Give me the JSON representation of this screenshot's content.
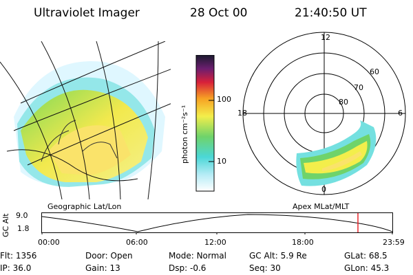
{
  "header": {
    "title": "Ultraviolet Imager",
    "date": "28 Oct 00",
    "time": "21:40:50 UT"
  },
  "colorbar": {
    "unit_label": "photon cm⁻²s⁻¹",
    "ticks": [
      "100",
      "10"
    ]
  },
  "panels": {
    "left_caption": "Geographic Lat/Lon",
    "right_caption": "Apex MLat/MLT"
  },
  "polar_plot": {
    "mlt_labels": {
      "top": "12",
      "left": "18",
      "right": "6",
      "bottom": "0"
    },
    "lat_labels": [
      "60",
      "70",
      "80"
    ]
  },
  "altitude_plot": {
    "ylabel": "GC Alt",
    "y_ticks": [
      "9.0",
      "1.8"
    ],
    "x_ticks": [
      "00:00",
      "06:00",
      "12:00",
      "18:00",
      "23:59"
    ],
    "marker_color": "#e8262b"
  },
  "info_rows": [
    [
      {
        "label": "Flt:",
        "value": "1356"
      },
      {
        "label": "Door:",
        "value": "Open"
      },
      {
        "label": "Mode:",
        "value": "Normal"
      },
      {
        "label": "GC Alt:",
        "value": "5.9 Re"
      },
      {
        "label": "GLat:",
        "value": "68.5"
      }
    ],
    [
      {
        "label": "IP:",
        "value": "36.0"
      },
      {
        "label": "Gain:",
        "value": "13"
      },
      {
        "label": "Dsp:",
        "value": "-0.6"
      },
      {
        "label": "Seq:",
        "value": "30"
      },
      {
        "label": "GLon:",
        "value": "45.3"
      }
    ]
  ]
}
